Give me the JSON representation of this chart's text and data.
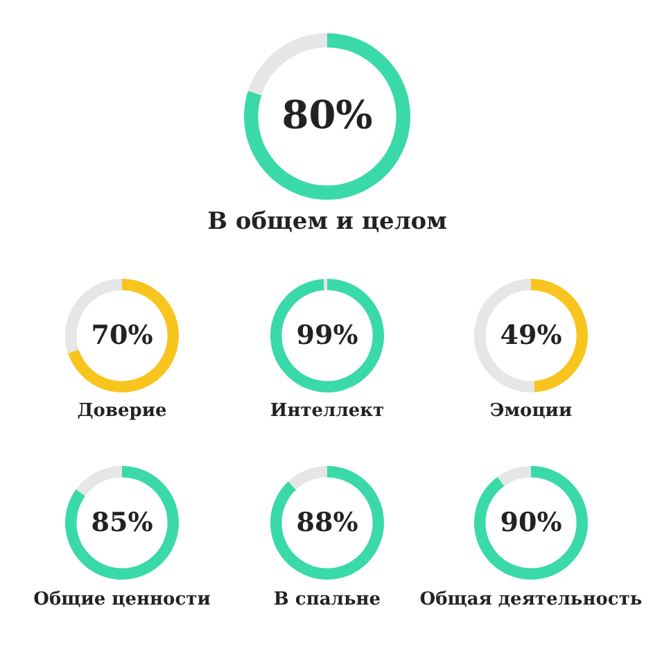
{
  "chart_data": [
    {
      "type": "donut",
      "title": "В общем и целом",
      "categories": [
        null,
        null
      ],
      "values": [
        80,
        20
      ],
      "colors": [
        "#3ad9a9",
        "#e6e6e6"
      ],
      "value_labels": [
        "80%",
        null
      ]
    },
    {
      "type": "donut",
      "title": "Доверие",
      "categories": [
        null,
        null
      ],
      "values": [
        70,
        30
      ],
      "colors": [
        "#f8c41e",
        "#e6e6e6"
      ],
      "value_labels": [
        "70%",
        null
      ]
    },
    {
      "type": "donut",
      "title": "Интеллект",
      "categories": [
        null,
        null
      ],
      "values": [
        99,
        1
      ],
      "colors": [
        "#3ad9a9",
        "#e6e6e6"
      ],
      "value_labels": [
        "99%",
        null
      ]
    },
    {
      "type": "donut",
      "title": "Эмоции",
      "categories": [
        null,
        null
      ],
      "values": [
        49,
        51
      ],
      "colors": [
        "#f8c41e",
        "#e6e6e6"
      ],
      "value_labels": [
        "49%",
        null
      ]
    },
    {
      "type": "donut",
      "title": "Общие ценности",
      "categories": [
        null,
        null
      ],
      "values": [
        85,
        15
      ],
      "colors": [
        "#3ad9a9",
        "#e6e6e6"
      ],
      "value_labels": [
        "85%",
        null
      ]
    },
    {
      "type": "donut",
      "title": "В спальне",
      "categories": [
        null,
        null
      ],
      "values": [
        88,
        12
      ],
      "colors": [
        "#3ad9a9",
        "#e6e6e6"
      ],
      "value_labels": [
        "88%",
        null
      ]
    },
    {
      "type": "donut",
      "title": "Общая деятельность",
      "categories": [
        null,
        null
      ],
      "values": [
        90,
        10
      ],
      "colors": [
        "#3ad9a9",
        "#e6e6e6"
      ],
      "value_labels": [
        "90%",
        null
      ]
    }
  ]
}
